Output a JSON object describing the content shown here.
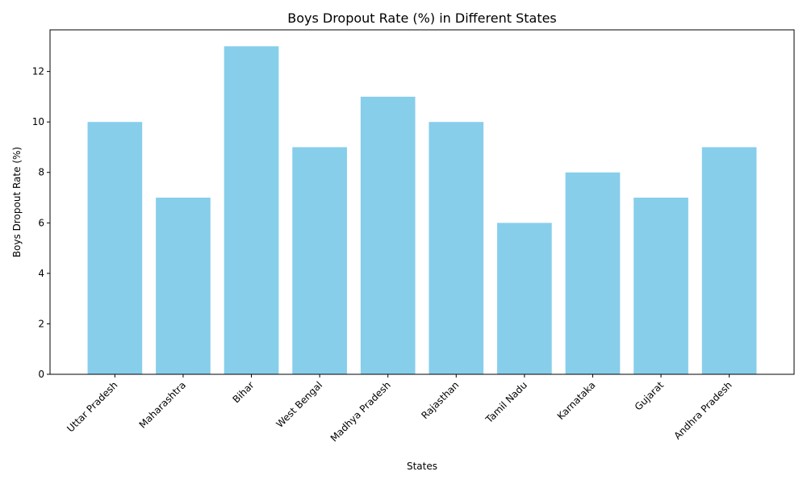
{
  "chart_data": {
    "type": "bar",
    "title": "Boys Dropout Rate (%) in Different States",
    "xlabel": "States",
    "ylabel": "Boys Dropout Rate (%)",
    "categories": [
      "Uttar Pradesh",
      "Maharashtra",
      "Bihar",
      "West Bengal",
      "Madhya Pradesh",
      "Rajasthan",
      "Tamil Nadu",
      "Karnataka",
      "Gujarat",
      "Andhra Pradesh"
    ],
    "values": [
      10,
      7,
      13,
      9,
      11,
      10,
      6,
      8,
      7,
      9
    ],
    "ylim": [
      0,
      13.65
    ],
    "yticks": [
      0,
      2,
      4,
      6,
      8,
      10,
      12
    ],
    "bar_color": "#87CEEB",
    "grid": false
  }
}
